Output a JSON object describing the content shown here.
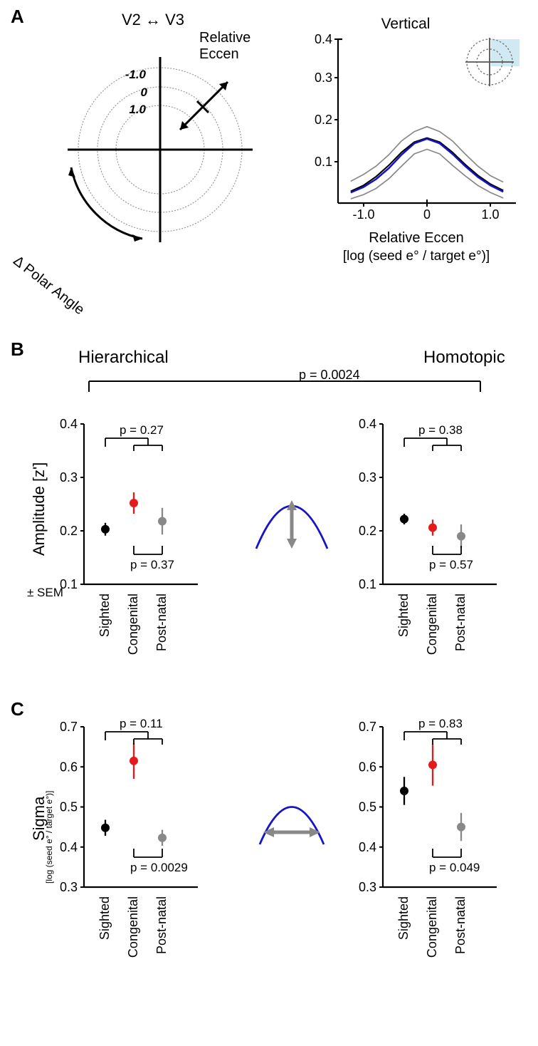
{
  "panelA": {
    "label": "A",
    "polar_plot": {
      "title": "V2 ↔ V3",
      "radial_label": "Relative Eccen",
      "angular_label": "Δ Polar Angle",
      "radial_ticks": [
        "1.0",
        "0",
        "-1.0"
      ],
      "colormap_light": "#fde9c8",
      "colormap_mid": "#f4c07a",
      "colormap_dark": "#aa2e38",
      "grid_color": "#999999",
      "axis_color": "#000000"
    },
    "line_plot": {
      "title": "Vertical",
      "xlabel": "Relative Eccen",
      "xlabel2": "[log (seed e° / target e°)]",
      "xticks": [
        "-1.0",
        "0",
        "1.0"
      ],
      "yticks": [
        "0.1",
        "0.2",
        "0.3",
        "0.4"
      ],
      "ylim": [
        0.03,
        0.42
      ],
      "xlim": [
        -1.4,
        1.4
      ],
      "curve_blue": "#1414c8",
      "curve_black": "#000000",
      "curve_gray": "#888888",
      "inset_highlight": "#bde0ee",
      "inset_dash": "#999999",
      "black_x": [
        -1.2,
        -1.0,
        -0.8,
        -0.6,
        -0.4,
        -0.2,
        0,
        0.2,
        0.4,
        0.6,
        0.8,
        1.0,
        1.2
      ],
      "black_y": [
        0.058,
        0.072,
        0.093,
        0.12,
        0.151,
        0.175,
        0.185,
        0.175,
        0.151,
        0.122,
        0.096,
        0.075,
        0.06
      ],
      "blue_x": [
        -1.2,
        -1.0,
        -0.8,
        -0.6,
        -0.4,
        -0.2,
        0,
        0.2,
        0.4,
        0.6,
        0.8,
        1.0,
        1.2
      ],
      "blue_y": [
        0.055,
        0.068,
        0.087,
        0.113,
        0.145,
        0.172,
        0.183,
        0.172,
        0.147,
        0.118,
        0.092,
        0.072,
        0.057
      ],
      "gray_hi_x": [
        -1.2,
        -1.0,
        -0.8,
        -0.6,
        -0.4,
        -0.2,
        0,
        0.2,
        0.4,
        0.6,
        0.8,
        1.0,
        1.2
      ],
      "gray_hi_y": [
        0.082,
        0.098,
        0.118,
        0.145,
        0.178,
        0.2,
        0.212,
        0.2,
        0.178,
        0.147,
        0.118,
        0.095,
        0.08
      ],
      "gray_lo_x": [
        -1.2,
        -1.0,
        -0.8,
        -0.6,
        -0.4,
        -0.2,
        0,
        0.2,
        0.4,
        0.6,
        0.8,
        1.0,
        1.2
      ],
      "gray_lo_y": [
        0.04,
        0.05,
        0.065,
        0.088,
        0.118,
        0.147,
        0.158,
        0.147,
        0.12,
        0.095,
        0.072,
        0.055,
        0.042
      ]
    }
  },
  "panelB": {
    "label": "B",
    "left_title": "Hierarchical",
    "right_title": "Homotopic",
    "cross_p": "p = 0.0024",
    "ylabel": "Amplitude [z']",
    "sem_label": "± SEM",
    "yticks": [
      "0.1",
      "0.2",
      "0.3",
      "0.4"
    ],
    "categories": [
      "Sighted",
      "Congenital",
      "Post-natal"
    ],
    "colors": {
      "sighted": "#000000",
      "congenital": "#e41a1c",
      "postnatal": "#888888"
    },
    "left": {
      "p_top": "p = 0.27",
      "p_bot": "p = 0.37",
      "vals": [
        0.203,
        0.252,
        0.218
      ],
      "errs": [
        0.012,
        0.02,
        0.025
      ]
    },
    "right": {
      "p_top": "p = 0.38",
      "p_bot": "p = 0.57",
      "vals": [
        0.222,
        0.206,
        0.19
      ],
      "errs": [
        0.01,
        0.015,
        0.022
      ]
    },
    "icon_curve": "#1414c8",
    "icon_arrow": "#888888",
    "ylim": [
      0.1,
      0.4
    ]
  },
  "panelC": {
    "label": "C",
    "ylabel": "Sigma",
    "ylabel2": "[log (seed e° / target e°)]",
    "yticks": [
      "0.3",
      "0.4",
      "0.5",
      "0.6",
      "0.7"
    ],
    "categories": [
      "Sighted",
      "Congenital",
      "Post-natal"
    ],
    "colors": {
      "sighted": "#000000",
      "congenital": "#e41a1c",
      "postnatal": "#888888"
    },
    "left": {
      "p_top": "p = 0.11",
      "p_bot": "p = 0.0029",
      "vals": [
        0.448,
        0.615,
        0.423
      ],
      "errs": [
        0.02,
        0.045,
        0.02
      ]
    },
    "right": {
      "p_top": "p = 0.83",
      "p_bot": "p = 0.049",
      "vals": [
        0.54,
        0.605,
        0.45
      ],
      "errs": [
        0.035,
        0.052,
        0.035
      ]
    },
    "icon_curve": "#1414c8",
    "icon_arrow": "#888888",
    "ylim": [
      0.3,
      0.7
    ]
  }
}
